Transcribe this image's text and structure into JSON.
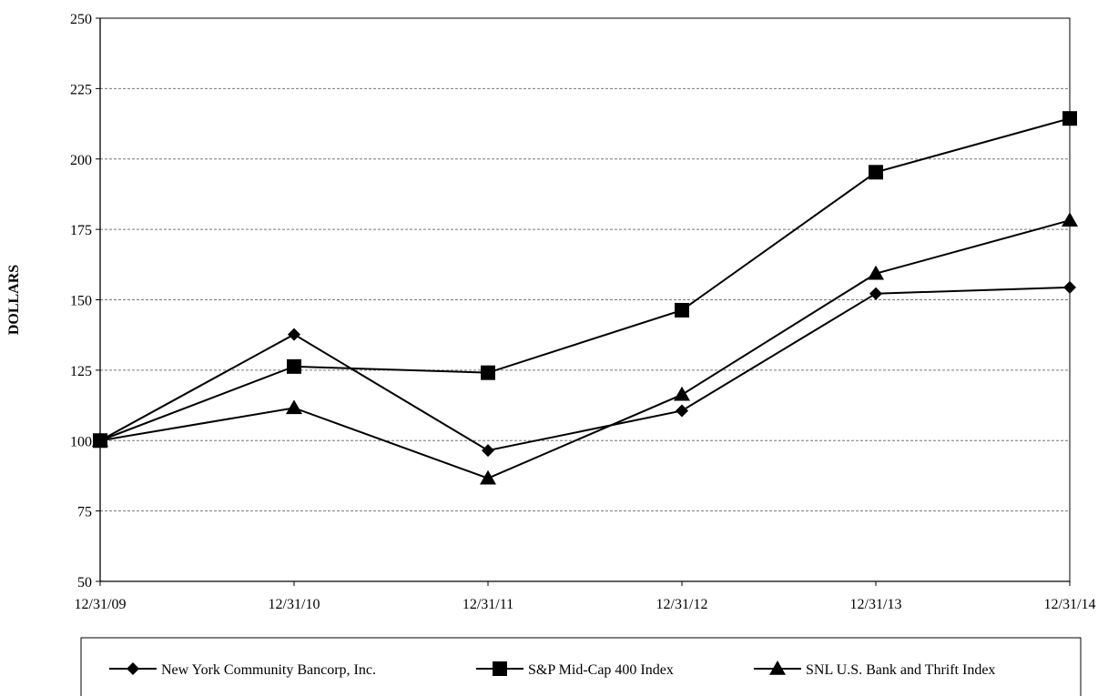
{
  "chart_data": {
    "type": "line",
    "categories": [
      "12/31/09",
      "12/31/10",
      "12/31/11",
      "12/31/12",
      "12/31/13",
      "12/31/14"
    ],
    "ylabel": "DOLLARS",
    "ylim": [
      50,
      250
    ],
    "yticks": [
      50,
      75,
      100,
      125,
      150,
      175,
      200,
      225,
      250
    ],
    "grid": "horizontal dashed",
    "legend_position": "bottom",
    "series": [
      {
        "name": "New York Community Bancorp, Inc.",
        "marker": "diamond",
        "values": [
          100,
          137.7,
          96.5,
          110.6,
          152.2,
          154.4
        ]
      },
      {
        "name": "S&P Mid-Cap 400 Index",
        "marker": "square",
        "values": [
          100,
          126.3,
          124.1,
          146.3,
          195.3,
          214.4
        ]
      },
      {
        "name": "SNL U.S. Bank and Thrift Index",
        "marker": "triangle",
        "values": [
          100,
          111.6,
          86.6,
          116.3,
          159.3,
          178.2
        ]
      }
    ]
  }
}
